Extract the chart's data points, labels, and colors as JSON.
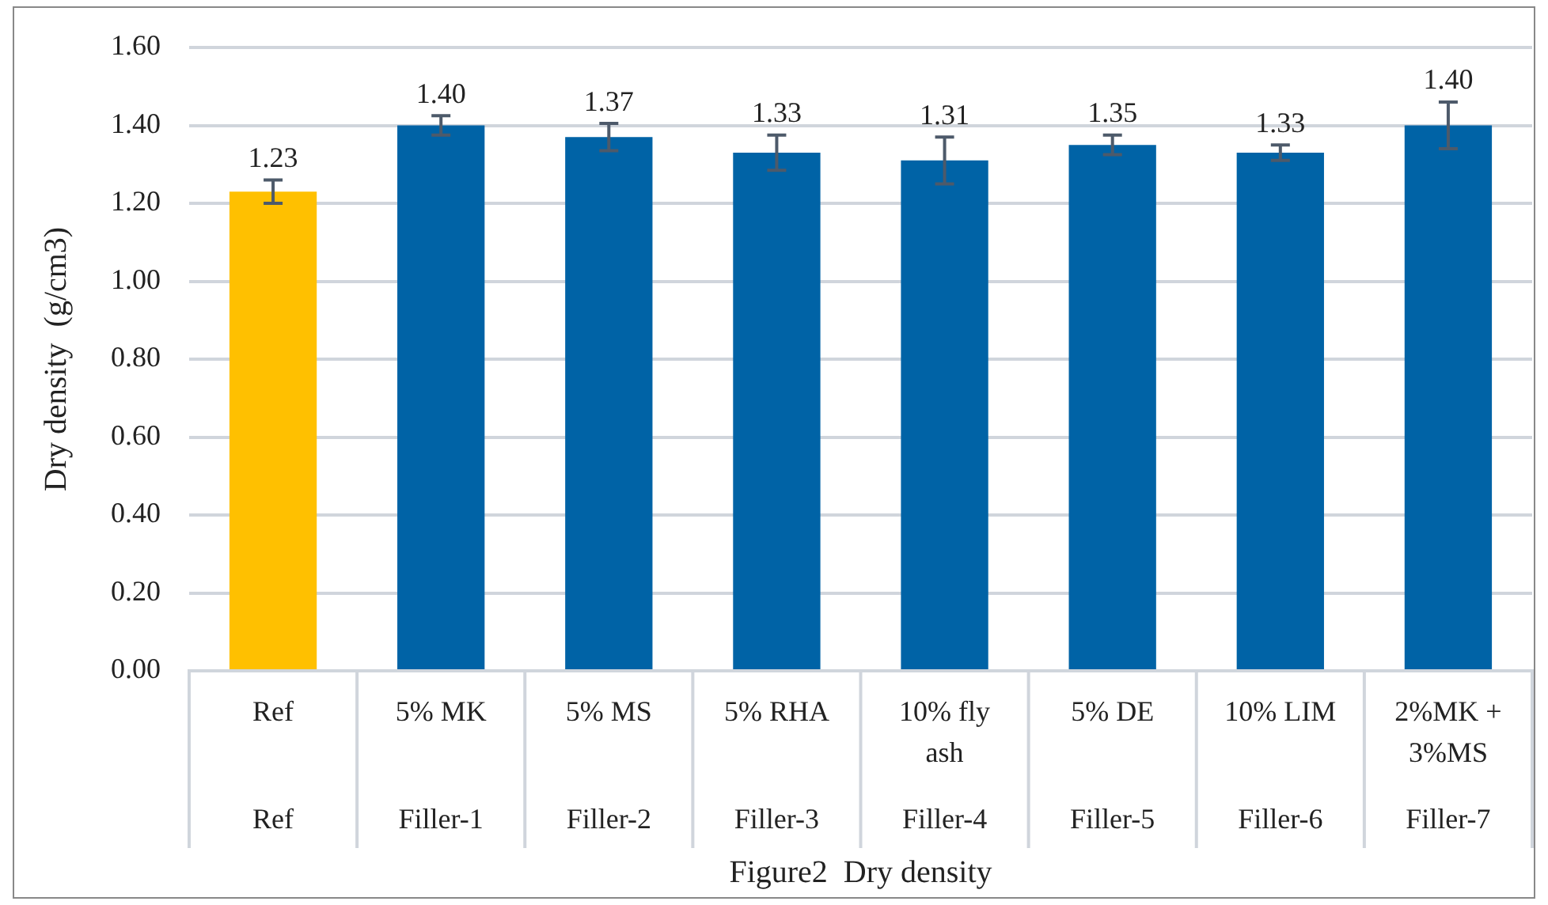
{
  "chart_data": {
    "type": "bar",
    "annotations": [
      "Figure2  Dry density"
    ],
    "ylabel": "Dry density  (g/cm3)",
    "categories": [
      "Ref\nRef",
      "5% MK\nFiller-1",
      "5% MS\nFiller-2",
      "5% RHA\nFiller-3",
      "10% fly\nash\nFiller-4",
      "5% DE\nFiller-5",
      "10% LIM\nFiller-6",
      "2%MK +\n3%MS\nFiller-7"
    ],
    "values": [
      1.23,
      1.4,
      1.37,
      1.33,
      1.31,
      1.35,
      1.33,
      1.4
    ],
    "colors": [
      "#ffc000",
      "#0063a6",
      "#0063a6",
      "#0063a6",
      "#0063a6",
      "#0063a6",
      "#0063a6",
      "#0063a6"
    ],
    "errors": [
      0.03,
      0.025,
      0.035,
      0.045,
      0.06,
      0.025,
      0.02,
      0.06
    ],
    "value_labels": [
      "1.23",
      "1.40",
      "1.37",
      "1.33",
      "1.31",
      "1.35",
      "1.33",
      "1.40"
    ],
    "ylim": [
      0,
      1.6
    ],
    "yticks": [
      {
        "value": 0,
        "label": "0.00"
      },
      {
        "value": 0.2,
        "label": "0.20"
      },
      {
        "value": 0.4,
        "label": "0.40"
      },
      {
        "value": 0.6,
        "label": "0.60"
      },
      {
        "value": 0.8,
        "label": "0.80"
      },
      {
        "value": 1,
        "label": "1.00"
      },
      {
        "value": 1.2,
        "label": "1.20"
      },
      {
        "value": 1.4,
        "label": "1.40"
      },
      {
        "value": 1.6,
        "label": "1.60"
      }
    ],
    "grid": "y",
    "legend": false
  }
}
